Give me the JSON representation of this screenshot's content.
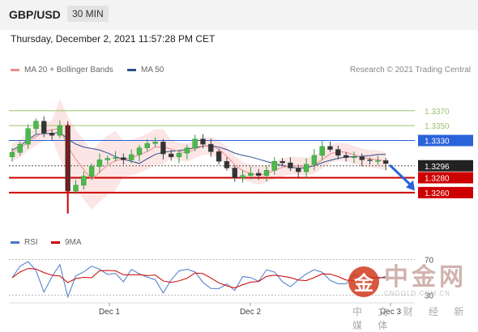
{
  "header": {
    "pair": "GBP/USD",
    "timeframe": "30 MIN",
    "datetime": "Thursday, December 2, 2021 11:57:28 PM CET"
  },
  "legend": {
    "bollinger_label": "MA 20 + Bollinger Bands",
    "ma50_label": "MA 50",
    "credit": "Research © 2021 Trading Central"
  },
  "rsi_legend": {
    "rsi_label": "RSI",
    "ma9_label": "9MA"
  },
  "watermark": {
    "cn": "中金网",
    "en": "CNGOLD.COM.CN",
    "sub": "中 文 财 经 新 媒 体",
    "logo_glyph": "金"
  },
  "colors": {
    "bollinger": "#f08a8a",
    "ma50": "#2a4f8f",
    "resistance": "#9cc26b",
    "pivot": "#2a62d9",
    "support": "#cc0000",
    "current": "#222222",
    "rsi": "#4a78c8",
    "rsi_ma": "#cc0000",
    "arrow": "#2a62d9"
  },
  "chart_data": {
    "type": "candlestick",
    "x_ticks": [
      "Dec 1",
      "Dec 2",
      "Dec 3"
    ],
    "y_range": [
      1.3225,
      1.341
    ],
    "current_price": 1.3296,
    "levels": [
      {
        "value": 1.337,
        "label": "1.3370",
        "kind": "resistance"
      },
      {
        "value": 1.335,
        "label": "1.3350",
        "kind": "resistance"
      },
      {
        "value": 1.333,
        "label": "1.3330",
        "kind": "pivot"
      },
      {
        "value": 1.3296,
        "label": "1.3296",
        "kind": "current"
      },
      {
        "value": 1.328,
        "label": "1.3280",
        "kind": "support"
      },
      {
        "value": 1.326,
        "label": "1.3260",
        "kind": "support"
      }
    ],
    "close_path": [
      1.3314,
      1.3325,
      1.3346,
      1.3356,
      1.334,
      1.3337,
      1.335,
      1.3262,
      1.327,
      1.3282,
      1.3295,
      1.3304,
      1.3306,
      1.3307,
      1.3304,
      1.3311,
      1.332,
      1.3326,
      1.3328,
      1.3312,
      1.3308,
      1.3313,
      1.332,
      1.3332,
      1.3325,
      1.3315,
      1.3302,
      1.3293,
      1.328,
      1.3283,
      1.3286,
      1.3283,
      1.329,
      1.3302,
      1.33,
      1.3293,
      1.3288,
      1.3298,
      1.331,
      1.3322,
      1.3318,
      1.331,
      1.3307,
      1.3308,
      1.3304,
      1.3303,
      1.3303,
      1.3299
    ],
    "rsi": {
      "levels": [
        70,
        30
      ],
      "level_labels": [
        "70",
        "30"
      ]
    }
  }
}
